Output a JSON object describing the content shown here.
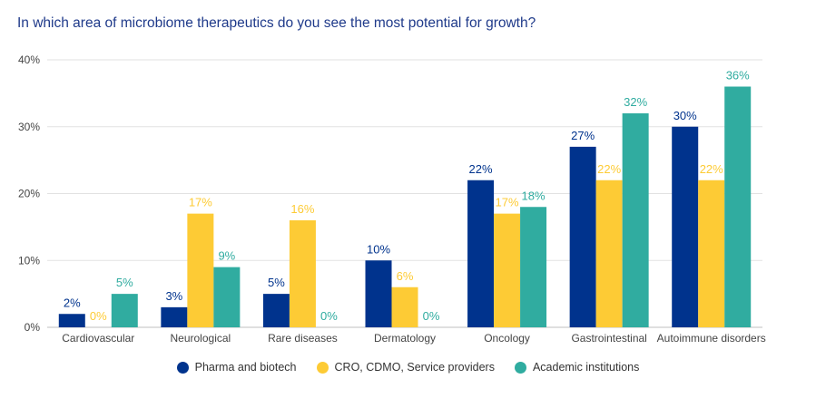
{
  "chart_data": {
    "type": "bar",
    "title": "In which area of microbiome therapeutics do you see the most potential for growth?",
    "categories": [
      "Cardiovascular",
      "Neurological",
      "Rare diseases",
      "Dermatology",
      "Oncology",
      "Gastrointestinal",
      "Autoimmune disorders"
    ],
    "series": [
      {
        "name": "Pharma and biotech",
        "color": "#00338d",
        "label_color": "#00338d",
        "values": [
          2,
          3,
          5,
          10,
          22,
          27,
          30
        ]
      },
      {
        "name": "CRO, CDMO, Service providers",
        "color": "#fdcb35",
        "label_color": "#fdcb35",
        "values": [
          0,
          17,
          16,
          6,
          17,
          22,
          22
        ]
      },
      {
        "name": "Academic institutions",
        "color": "#30aca0",
        "label_color": "#30aca0",
        "values": [
          5,
          9,
          0,
          0,
          18,
          32,
          36
        ]
      }
    ],
    "ylim": [
      0,
      40
    ],
    "yticks": [
      0,
      10,
      20,
      30,
      40
    ],
    "ytick_labels": [
      "0%",
      "10%",
      "20%",
      "30%",
      "40%"
    ],
    "value_suffix": "%",
    "grid": true,
    "legend_position": "bottom"
  }
}
